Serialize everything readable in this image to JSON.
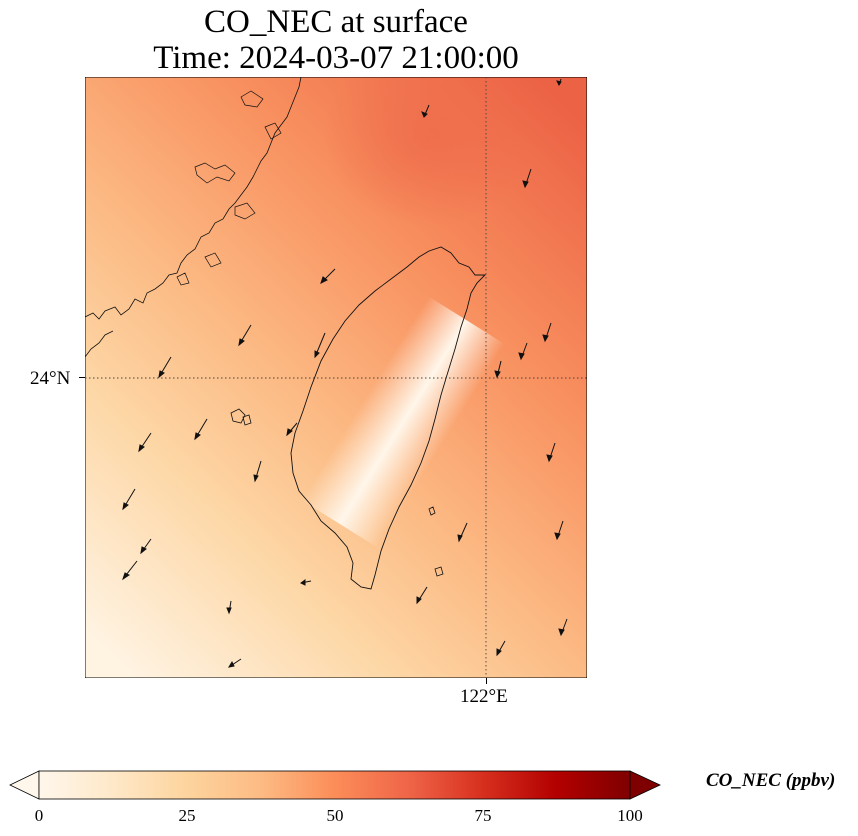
{
  "title_line1": "CO_NEC at surface",
  "title_line2": "Time: 2024-03-07 21:00:00",
  "map": {
    "lat_label": "24°N",
    "lon_label": "122°E",
    "region": "Taiwan Strait / Taiwan",
    "gridlines": "dotted"
  },
  "colorbar": {
    "label": "CO_NEC (ppbv)",
    "ticks": [
      "0",
      "25",
      "50",
      "75",
      "100"
    ],
    "range": [
      0,
      100
    ],
    "colormap": "OrRd",
    "colors": [
      "#fff7ec",
      "#fee8c8",
      "#fdd49e",
      "#fdbb84",
      "#fc8d59",
      "#ef6548",
      "#d7301f",
      "#b30000",
      "#7f0000"
    ],
    "extend": "both"
  }
}
